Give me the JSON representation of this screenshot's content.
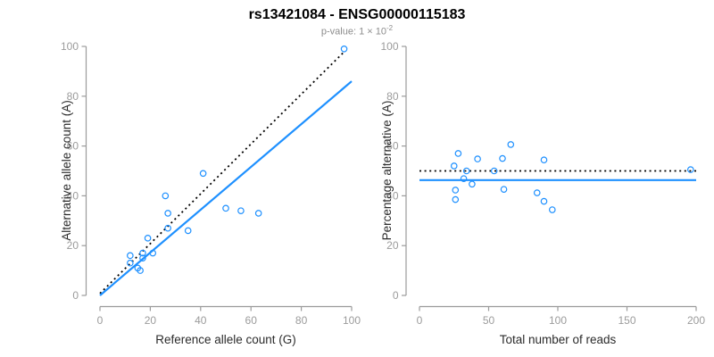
{
  "title": "rs13421084 - ENSG00000115183",
  "subtitle": {
    "prefix": "p-value: ",
    "base": "1 × 10",
    "exponent": "-2"
  },
  "colors": {
    "accent_blue": "#1E90FF",
    "dotted_black": "#000000",
    "axis_gray": "#9b9b9b",
    "tick_label_gray": "#9b9b9b",
    "axis_title_color": "#2b2b2b",
    "background": "#ffffff"
  },
  "chart_data": [
    {
      "type": "scatter",
      "panel": "left",
      "xlabel": "Reference allele count (G)",
      "ylabel": "Alternative allele count (A)",
      "xlim": [
        0,
        100
      ],
      "ylim": [
        0,
        100
      ],
      "xticks": [
        0,
        20,
        40,
        60,
        80,
        100
      ],
      "yticks": [
        0,
        20,
        40,
        60,
        80,
        100
      ],
      "grid": false,
      "legend": null,
      "marker": "open-circle",
      "points": [
        [
          12,
          13
        ],
        [
          12,
          16
        ],
        [
          15,
          11
        ],
        [
          16,
          10
        ],
        [
          17,
          15
        ],
        [
          17,
          17
        ],
        [
          19,
          23
        ],
        [
          21,
          17
        ],
        [
          26,
          40
        ],
        [
          27,
          27
        ],
        [
          27,
          33
        ],
        [
          35,
          26
        ],
        [
          41,
          49
        ],
        [
          50,
          35
        ],
        [
          56,
          34
        ],
        [
          63,
          33
        ],
        [
          97,
          99
        ]
      ],
      "lines": [
        {
          "name": "identity-line",
          "style": "dotted",
          "color": "#000000",
          "x1": 0,
          "y1": 0.8,
          "x2": 97,
          "y2": 97.8
        },
        {
          "name": "regression-line",
          "style": "solid",
          "color": "#1E90FF",
          "x1": 0,
          "y1": 0,
          "x2": 100,
          "y2": 86
        }
      ]
    },
    {
      "type": "scatter",
      "panel": "right",
      "xlabel": "Total number of reads",
      "ylabel": "Percentage alternative (A)",
      "xlim": [
        0,
        200
      ],
      "ylim": [
        0,
        100
      ],
      "xticks": [
        0,
        50,
        100,
        150,
        200
      ],
      "yticks": [
        0,
        20,
        40,
        60,
        80,
        100
      ],
      "grid": false,
      "legend": null,
      "marker": "open-circle",
      "points": [
        [
          25,
          52
        ],
        [
          26,
          38.5
        ],
        [
          26,
          42.3
        ],
        [
          28,
          57
        ],
        [
          32,
          46.9
        ],
        [
          34,
          50
        ],
        [
          38,
          44.7
        ],
        [
          42,
          54.8
        ],
        [
          54,
          50
        ],
        [
          60,
          55
        ],
        [
          61,
          42.6
        ],
        [
          66,
          60.6
        ],
        [
          85,
          41.2
        ],
        [
          90,
          37.8
        ],
        [
          90,
          54.4
        ],
        [
          96,
          34.4
        ],
        [
          196,
          50.5
        ]
      ],
      "lines": [
        {
          "name": "expected-50pct-line",
          "style": "dotted",
          "color": "#000000",
          "x1": 0,
          "y1": 50,
          "x2": 200,
          "y2": 50
        },
        {
          "name": "mean-pct-line",
          "style": "solid",
          "color": "#1E90FF",
          "x1": 0,
          "y1": 46.3,
          "x2": 200,
          "y2": 46.3
        }
      ]
    }
  ]
}
